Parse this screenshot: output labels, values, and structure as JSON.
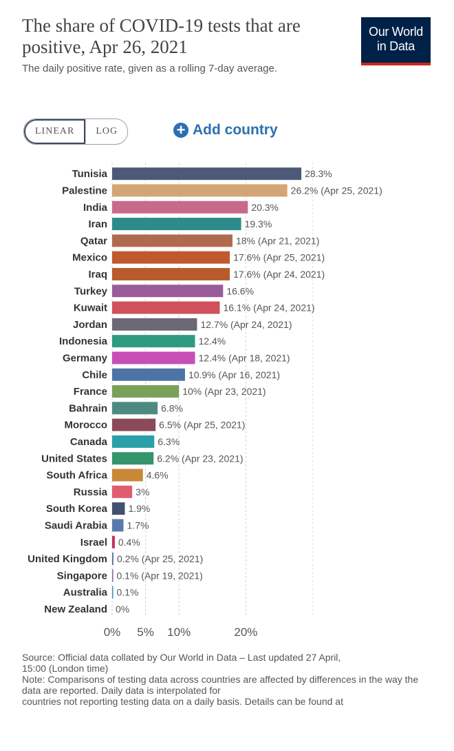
{
  "header": {
    "title": "The share of COVID-19 tests that are positive, Apr 26, 2021",
    "subtitle": "The daily positive rate, given as a rolling 7-day average."
  },
  "logo": {
    "line1": "Our World",
    "line2": "in Data",
    "bg": "#002147",
    "accent": "#ce261e"
  },
  "controls": {
    "linear_label": "LINEAR",
    "log_label": "LOG",
    "add_country_label": "Add country",
    "add_icon": "plus-circle-icon"
  },
  "chart_data": {
    "type": "bar",
    "orientation": "horizontal",
    "grid": true,
    "xlim": [
      0,
      30
    ],
    "xticks": [
      0,
      5,
      10,
      20
    ],
    "xtick_labels": [
      "0%",
      "5%",
      "10%",
      "20%"
    ],
    "categories": [
      "Tunisia",
      "Palestine",
      "India",
      "Iran",
      "Qatar",
      "Mexico",
      "Iraq",
      "Turkey",
      "Kuwait",
      "Jordan",
      "Indonesia",
      "Germany",
      "Chile",
      "France",
      "Bahrain",
      "Morocco",
      "Canada",
      "United States",
      "South Africa",
      "Russia",
      "South Korea",
      "Saudi Arabia",
      "Israel",
      "United Kingdom",
      "Singapore",
      "Australia",
      "New Zealand"
    ],
    "values": [
      28.3,
      26.2,
      20.3,
      19.3,
      18,
      17.6,
      17.6,
      16.6,
      16.1,
      12.7,
      12.4,
      12.4,
      10.9,
      10,
      6.8,
      6.5,
      6.3,
      6.2,
      4.6,
      3,
      1.9,
      1.7,
      0.4,
      0.2,
      0.1,
      0.1,
      0
    ],
    "value_labels": [
      "28.3%",
      "26.2% (Apr 25, 2021)",
      "20.3%",
      "19.3%",
      "18% (Apr 21, 2021)",
      "17.6% (Apr 25, 2021)",
      "17.6% (Apr 24, 2021)",
      "16.6%",
      "16.1% (Apr 24, 2021)",
      "12.7% (Apr 24, 2021)",
      "12.4%",
      "12.4% (Apr 18, 2021)",
      "10.9% (Apr 16, 2021)",
      "10% (Apr 23, 2021)",
      "6.8%",
      "6.5% (Apr 25, 2021)",
      "6.3%",
      "6.2% (Apr 23, 2021)",
      "4.6%",
      "3%",
      "1.9%",
      "1.7%",
      "0.4%",
      "0.2% (Apr 25, 2021)",
      "0.1% (Apr 19, 2021)",
      "0.1%",
      "0%"
    ],
    "colors": [
      "#4c5a78",
      "#d4a574",
      "#c96a8a",
      "#2e8b8b",
      "#b06b4f",
      "#c0592e",
      "#b85a2c",
      "#9a5c9a",
      "#d0505c",
      "#6b6878",
      "#2e9a80",
      "#c64eb6",
      "#4d74a6",
      "#7aa05a",
      "#4f8a80",
      "#8b4a58",
      "#2aa0a8",
      "#35946a",
      "#c98838",
      "#e05c6e",
      "#40506e",
      "#5a7aac",
      "#c03060",
      "#5a7a9a",
      "#7a6aa0",
      "#4a8ab0",
      "#8a8a8a"
    ]
  },
  "footer": {
    "source": "Source: Official data collated by Our World in Data – Last updated 27 April,",
    "time": "15:00 (London time)",
    "note1": "Note: Comparisons of testing data across countries are affected by differences in the way the data are reported. Daily data is interpolated for",
    "note2": "countries not reporting testing data on a daily basis. Details can be found at"
  }
}
